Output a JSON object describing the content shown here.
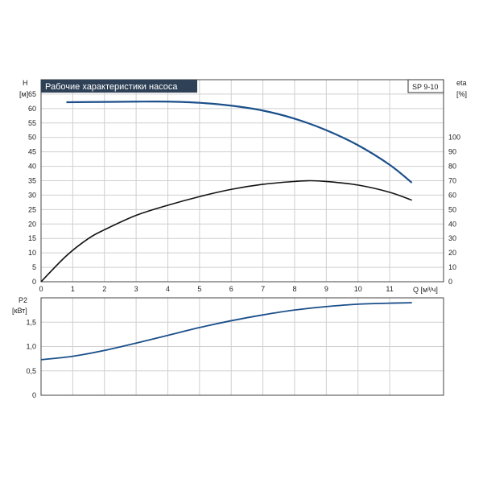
{
  "chart_data": [
    {
      "id": "top",
      "type": "line",
      "title": "Рабочие характеристики насоса",
      "model_label": "SP 9-10",
      "x_axis": {
        "label": "Q [м³/ч]",
        "ticks": [
          "0",
          "1",
          "2",
          "3",
          "4",
          "5",
          "6",
          "7",
          "8",
          "9",
          "10",
          "11"
        ],
        "range": [
          0,
          12.7
        ]
      },
      "y_left": {
        "label_line1": "H",
        "label_line2": "[м]",
        "ticks": [
          "0",
          "5",
          "10",
          "15",
          "20",
          "25",
          "30",
          "35",
          "40",
          "45",
          "50",
          "55",
          "60",
          "65"
        ],
        "range": [
          0,
          70
        ]
      },
      "y_right": {
        "label_line1": "eta",
        "label_line2": "[%]",
        "ticks": [
          "0",
          "10",
          "20",
          "30",
          "40",
          "50",
          "60",
          "70",
          "80",
          "90",
          "100"
        ],
        "range": [
          0,
          140
        ]
      },
      "grid": true,
      "series": [
        {
          "key": "head",
          "axis": "left",
          "color": "#1b4f8a",
          "x": [
            0.8,
            2,
            3,
            4,
            5,
            6,
            7,
            8,
            9,
            10,
            11,
            11.7
          ],
          "y": [
            62.2,
            62.3,
            62.4,
            62.4,
            62.0,
            61.0,
            59.3,
            56.5,
            52.5,
            47.3,
            40.5,
            34.3
          ]
        },
        {
          "key": "efficiency",
          "axis": "right",
          "color": "#111111",
          "x": [
            0,
            0.8,
            1.5,
            2,
            3,
            4,
            5,
            6,
            7,
            8,
            8.5,
            9,
            10,
            11,
            11.7
          ],
          "y": [
            0,
            18,
            30,
            36,
            46,
            53,
            59,
            64,
            67.5,
            69.5,
            70,
            69.5,
            67,
            62,
            56.5
          ]
        }
      ]
    },
    {
      "id": "bottom",
      "type": "line",
      "x_axis": {
        "ticks": [],
        "range": [
          0,
          12.7
        ]
      },
      "y_left": {
        "label_line1": "P2",
        "label_line2": "[кВт]",
        "ticks": [
          "0",
          "0,5",
          "1,0",
          "1,5"
        ],
        "range": [
          0,
          2.0
        ]
      },
      "grid": true,
      "series": [
        {
          "key": "power",
          "axis": "left",
          "color": "#1b4f8a",
          "x": [
            0,
            1,
            2,
            3,
            4,
            5,
            6,
            7,
            8,
            9,
            10,
            11,
            11.7
          ],
          "y": [
            0.73,
            0.8,
            0.92,
            1.07,
            1.23,
            1.39,
            1.53,
            1.65,
            1.75,
            1.82,
            1.87,
            1.89,
            1.9
          ]
        }
      ]
    }
  ]
}
